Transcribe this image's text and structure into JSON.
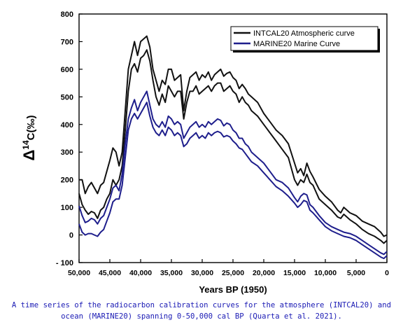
{
  "chart_data": {
    "type": "line",
    "xlabel": "Years BP (1950)",
    "ylabel_prefix": "Δ",
    "ylabel_super": "14",
    "ylabel_suffix": "C(‰)",
    "xlim": [
      50000,
      0
    ],
    "ylim": [
      -100,
      800
    ],
    "x_ticks": [
      {
        "value": 50000,
        "label": "50,000"
      },
      {
        "value": 45000,
        "label": "45,000"
      },
      {
        "value": 40000,
        "label": "40,000"
      },
      {
        "value": 35000,
        "label": "35,000"
      },
      {
        "value": 30000,
        "label": "30,000"
      },
      {
        "value": 25000,
        "label": "25,000"
      },
      {
        "value": 20000,
        "label": "20,000"
      },
      {
        "value": 15000,
        "label": "15,000"
      },
      {
        "value": 10000,
        "label": "10,000"
      },
      {
        "value": 5000,
        "label": "5,000"
      },
      {
        "value": 0,
        "label": "0"
      }
    ],
    "y_ticks": [
      {
        "value": 800,
        "label": "800"
      },
      {
        "value": 700,
        "label": "700"
      },
      {
        "value": 600,
        "label": "600"
      },
      {
        "value": 500,
        "label": "500"
      },
      {
        "value": 400,
        "label": "400"
      },
      {
        "value": 300,
        "label": "300"
      },
      {
        "value": 200,
        "label": "200"
      },
      {
        "value": 100,
        "label": "100"
      },
      {
        "value": 0,
        "label": "0"
      },
      {
        "value": -100,
        "label": "- 100"
      }
    ],
    "legend_position": "top-right",
    "series": [
      {
        "name": "INTCAL20 Atmospheric curve",
        "color": "#111111",
        "upper": {
          "x": [
            50000,
            49500,
            49000,
            48500,
            48000,
            47500,
            47000,
            46500,
            46000,
            45500,
            45000,
            44500,
            44000,
            43500,
            43000,
            42500,
            42000,
            41500,
            41000,
            40500,
            40000,
            39500,
            39000,
            38500,
            38000,
            37500,
            37000,
            36500,
            36000,
            35500,
            35000,
            34500,
            34000,
            33500,
            33000,
            32500,
            32000,
            31500,
            31000,
            30500,
            30000,
            29500,
            29000,
            28500,
            28000,
            27500,
            27000,
            26500,
            26000,
            25500,
            25000,
            24500,
            24000,
            23500,
            23000,
            22500,
            22000,
            21000,
            20000,
            19000,
            18000,
            17000,
            16000,
            15000,
            14500,
            14000,
            13500,
            13000,
            12500,
            12000,
            11000,
            10000,
            9000,
            8000,
            7500,
            7000,
            6000,
            5000,
            4000,
            3000,
            2000,
            1000,
            500,
            0
          ],
          "y": [
            200,
            200,
            150,
            175,
            190,
            170,
            150,
            180,
            190,
            230,
            270,
            315,
            300,
            250,
            300,
            450,
            600,
            650,
            700,
            650,
            700,
            710,
            720,
            680,
            600,
            560,
            520,
            560,
            545,
            600,
            600,
            560,
            570,
            580,
            450,
            520,
            570,
            580,
            590,
            560,
            580,
            570,
            590,
            560,
            580,
            590,
            600,
            575,
            585,
            590,
            570,
            560,
            530,
            545,
            530,
            510,
            500,
            480,
            440,
            410,
            380,
            360,
            330,
            260,
            225,
            240,
            215,
            260,
            230,
            210,
            165,
            140,
            120,
            90,
            80,
            100,
            80,
            70,
            50,
            40,
            30,
            10,
            -5,
            0
          ]
        },
        "lower": {
          "x": [
            50000,
            49500,
            49000,
            48500,
            48000,
            47500,
            47000,
            46500,
            46000,
            45500,
            45000,
            44500,
            44000,
            43500,
            43000,
            42500,
            42000,
            41500,
            41000,
            40500,
            40000,
            39500,
            39000,
            38500,
            38000,
            37500,
            37000,
            36500,
            36000,
            35500,
            35000,
            34500,
            34000,
            33500,
            33000,
            32500,
            32000,
            31500,
            31000,
            30500,
            30000,
            29500,
            29000,
            28500,
            28000,
            27500,
            27000,
            26500,
            26000,
            25500,
            25000,
            24500,
            24000,
            23500,
            23000,
            22500,
            22000,
            21000,
            20000,
            19000,
            18000,
            17000,
            16000,
            15000,
            14500,
            14000,
            13500,
            13000,
            12500,
            12000,
            11000,
            10000,
            9000,
            8000,
            7500,
            7000,
            6000,
            5000,
            4000,
            3000,
            2000,
            1000,
            500,
            0
          ],
          "y": [
            150,
            110,
            90,
            75,
            85,
            80,
            60,
            90,
            100,
            130,
            150,
            200,
            180,
            200,
            250,
            380,
            520,
            600,
            620,
            590,
            640,
            650,
            670,
            630,
            560,
            500,
            470,
            510,
            480,
            540,
            520,
            500,
            520,
            520,
            420,
            480,
            520,
            520,
            540,
            510,
            520,
            530,
            540,
            520,
            540,
            550,
            550,
            520,
            530,
            540,
            520,
            510,
            480,
            500,
            480,
            470,
            450,
            430,
            400,
            370,
            340,
            310,
            280,
            200,
            180,
            200,
            190,
            220,
            190,
            180,
            130,
            110,
            90,
            65,
            60,
            75,
            55,
            40,
            20,
            5,
            -5,
            -20,
            -30,
            -20
          ]
        }
      },
      {
        "name": "MARINE20 Marine Curve",
        "color": "#1e1e8c",
        "upper": {
          "x": [
            50000,
            49500,
            49000,
            48500,
            48000,
            47500,
            47000,
            46500,
            46000,
            45500,
            45000,
            44500,
            44000,
            43500,
            43000,
            42500,
            42000,
            41500,
            41000,
            40500,
            40000,
            39500,
            39000,
            38500,
            38000,
            37500,
            37000,
            36500,
            36000,
            35500,
            35000,
            34500,
            34000,
            33500,
            33000,
            32500,
            32000,
            31500,
            31000,
            30500,
            30000,
            29500,
            29000,
            28500,
            28000,
            27500,
            27000,
            26500,
            26000,
            25500,
            25000,
            24500,
            24000,
            23500,
            23000,
            22500,
            22000,
            21000,
            20000,
            19000,
            18000,
            17000,
            16000,
            15000,
            14500,
            14000,
            13500,
            13000,
            12500,
            12000,
            11000,
            10000,
            9000,
            8000,
            7000,
            6000,
            5000,
            4000,
            3000,
            2000,
            1000,
            500,
            0
          ],
          "y": [
            105,
            70,
            45,
            50,
            60,
            55,
            40,
            60,
            70,
            100,
            130,
            170,
            180,
            160,
            220,
            330,
            420,
            460,
            490,
            450,
            480,
            500,
            520,
            470,
            420,
            400,
            390,
            410,
            390,
            430,
            420,
            400,
            410,
            400,
            350,
            370,
            390,
            400,
            410,
            390,
            400,
            390,
            410,
            400,
            410,
            420,
            415,
            395,
            405,
            400,
            380,
            370,
            350,
            350,
            330,
            320,
            300,
            280,
            260,
            230,
            200,
            190,
            170,
            135,
            120,
            140,
            150,
            145,
            110,
            100,
            70,
            45,
            30,
            20,
            10,
            5,
            -5,
            -20,
            -35,
            -50,
            -65,
            -70,
            -60
          ]
        },
        "lower": {
          "x": [
            50000,
            49500,
            49000,
            48500,
            48000,
            47500,
            47000,
            46500,
            46000,
            45500,
            45000,
            44500,
            44000,
            43500,
            43000,
            42500,
            42000,
            41500,
            41000,
            40500,
            40000,
            39500,
            39000,
            38500,
            38000,
            37500,
            37000,
            36500,
            36000,
            35500,
            35000,
            34500,
            34000,
            33500,
            33000,
            32500,
            32000,
            31500,
            31000,
            30500,
            30000,
            29500,
            29000,
            28500,
            28000,
            27500,
            27000,
            26500,
            26000,
            25500,
            25000,
            24500,
            24000,
            23500,
            23000,
            22500,
            22000,
            21000,
            20000,
            19000,
            18000,
            17000,
            16000,
            15000,
            14500,
            14000,
            13500,
            13000,
            12500,
            12000,
            11000,
            10000,
            9000,
            8000,
            7000,
            6000,
            5000,
            4000,
            3000,
            2000,
            1000,
            500,
            0
          ],
          "y": [
            40,
            10,
            0,
            5,
            5,
            0,
            -5,
            10,
            20,
            50,
            80,
            120,
            130,
            130,
            180,
            280,
            380,
            420,
            440,
            420,
            440,
            460,
            480,
            430,
            390,
            370,
            360,
            380,
            360,
            390,
            380,
            360,
            370,
            360,
            320,
            330,
            350,
            360,
            370,
            350,
            360,
            350,
            370,
            360,
            370,
            375,
            370,
            355,
            360,
            355,
            340,
            330,
            315,
            310,
            295,
            280,
            265,
            250,
            225,
            200,
            175,
            160,
            140,
            115,
            100,
            110,
            125,
            120,
            90,
            80,
            55,
            30,
            15,
            5,
            -5,
            -10,
            -20,
            -35,
            -50,
            -65,
            -80,
            -85,
            -75
          ]
        }
      }
    ]
  },
  "caption": {
    "line1": "A time series of the radiocarbon calibration curves for the atmosphere (INTCAL20) and",
    "line2": "ocean (MARINE20) spanning 0-50,000 cal BP (Quarta et al. 2021)."
  }
}
